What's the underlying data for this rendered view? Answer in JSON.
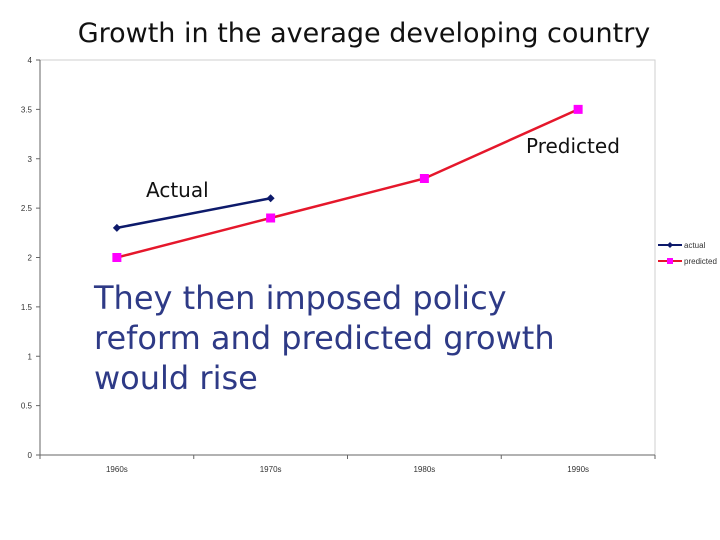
{
  "slide_title": "Growth in the average developing country",
  "annotations": {
    "predicted": "Predicted",
    "actual": "Actual"
  },
  "body_text": "They then imposed policy reform and predicted growth would rise",
  "colors": {
    "actual": "#0d1a6b",
    "predicted": "#e5172b",
    "predicted_marker": "#ff00ff"
  },
  "chart_data": {
    "type": "line",
    "title": "",
    "xlabel": "",
    "ylabel": "",
    "categories": [
      "1960s",
      "1970s",
      "1980s",
      "1990s"
    ],
    "ylim": [
      0,
      4
    ],
    "yticks": [
      "0",
      "0.5",
      "1",
      "1.5",
      "2",
      "2.5",
      "3",
      "3.5",
      "4"
    ],
    "grid": false,
    "legend_position": "right",
    "series": [
      {
        "name": "actual",
        "values": [
          2.3,
          2.6,
          null,
          null
        ]
      },
      {
        "name": "predicted",
        "values": [
          2.0,
          2.4,
          2.8,
          3.5
        ]
      }
    ]
  }
}
